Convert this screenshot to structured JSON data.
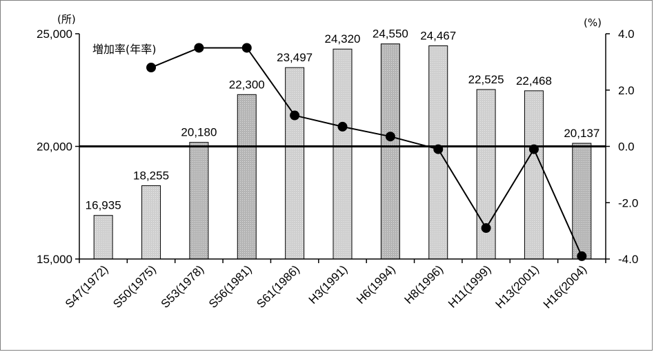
{
  "chart_data": {
    "type": "bar",
    "categories": [
      "S47(1972)",
      "S50(1975)",
      "S53(1978)",
      "S56(1981)",
      "S61(1986)",
      "H3(1991)",
      "H6(1994)",
      "H8(1996)",
      "H11(1999)",
      "H13(2001)",
      "H16(2004)"
    ],
    "series": [
      {
        "type": "bar",
        "axis": "left",
        "values": [
          16935,
          18255,
          20180,
          22300,
          23497,
          24320,
          24550,
          24467,
          22525,
          22468,
          20137
        ],
        "labels": [
          "16,935",
          "18,255",
          "20,180",
          "22,300",
          "23,497",
          "24,320",
          "24,550",
          "24,467",
          "22,525",
          "22,468",
          "20,137"
        ],
        "colors": [
          "#cfcfcf",
          "#cfcfcf",
          "#b5b5b5",
          "#b5b5b5",
          "#cfcfcf",
          "#cfcfcf",
          "#b5b5b5",
          "#cfcfcf",
          "#cfcfcf",
          "#cfcfcf",
          "#b5b5b5"
        ]
      },
      {
        "name": "増加率(年率)",
        "type": "line",
        "axis": "right",
        "values": [
          null,
          2.8,
          3.5,
          3.5,
          1.1,
          0.7,
          0.35,
          -0.1,
          -2.9,
          -0.1,
          -3.9
        ],
        "color": "#000000"
      }
    ],
    "ylim_left": [
      15000,
      25000
    ],
    "yticks_left": [
      "15,000",
      "20,000",
      "25,000"
    ],
    "ylim_right": [
      -4.0,
      4.0
    ],
    "yticks_right": [
      "-4.0",
      "-2.0",
      "0.0",
      "2.0",
      "4.0"
    ],
    "unit_left": "(所)",
    "unit_right": "(%)",
    "reference_line_left": 20000,
    "grid": false,
    "legend_placement": "top-left"
  }
}
